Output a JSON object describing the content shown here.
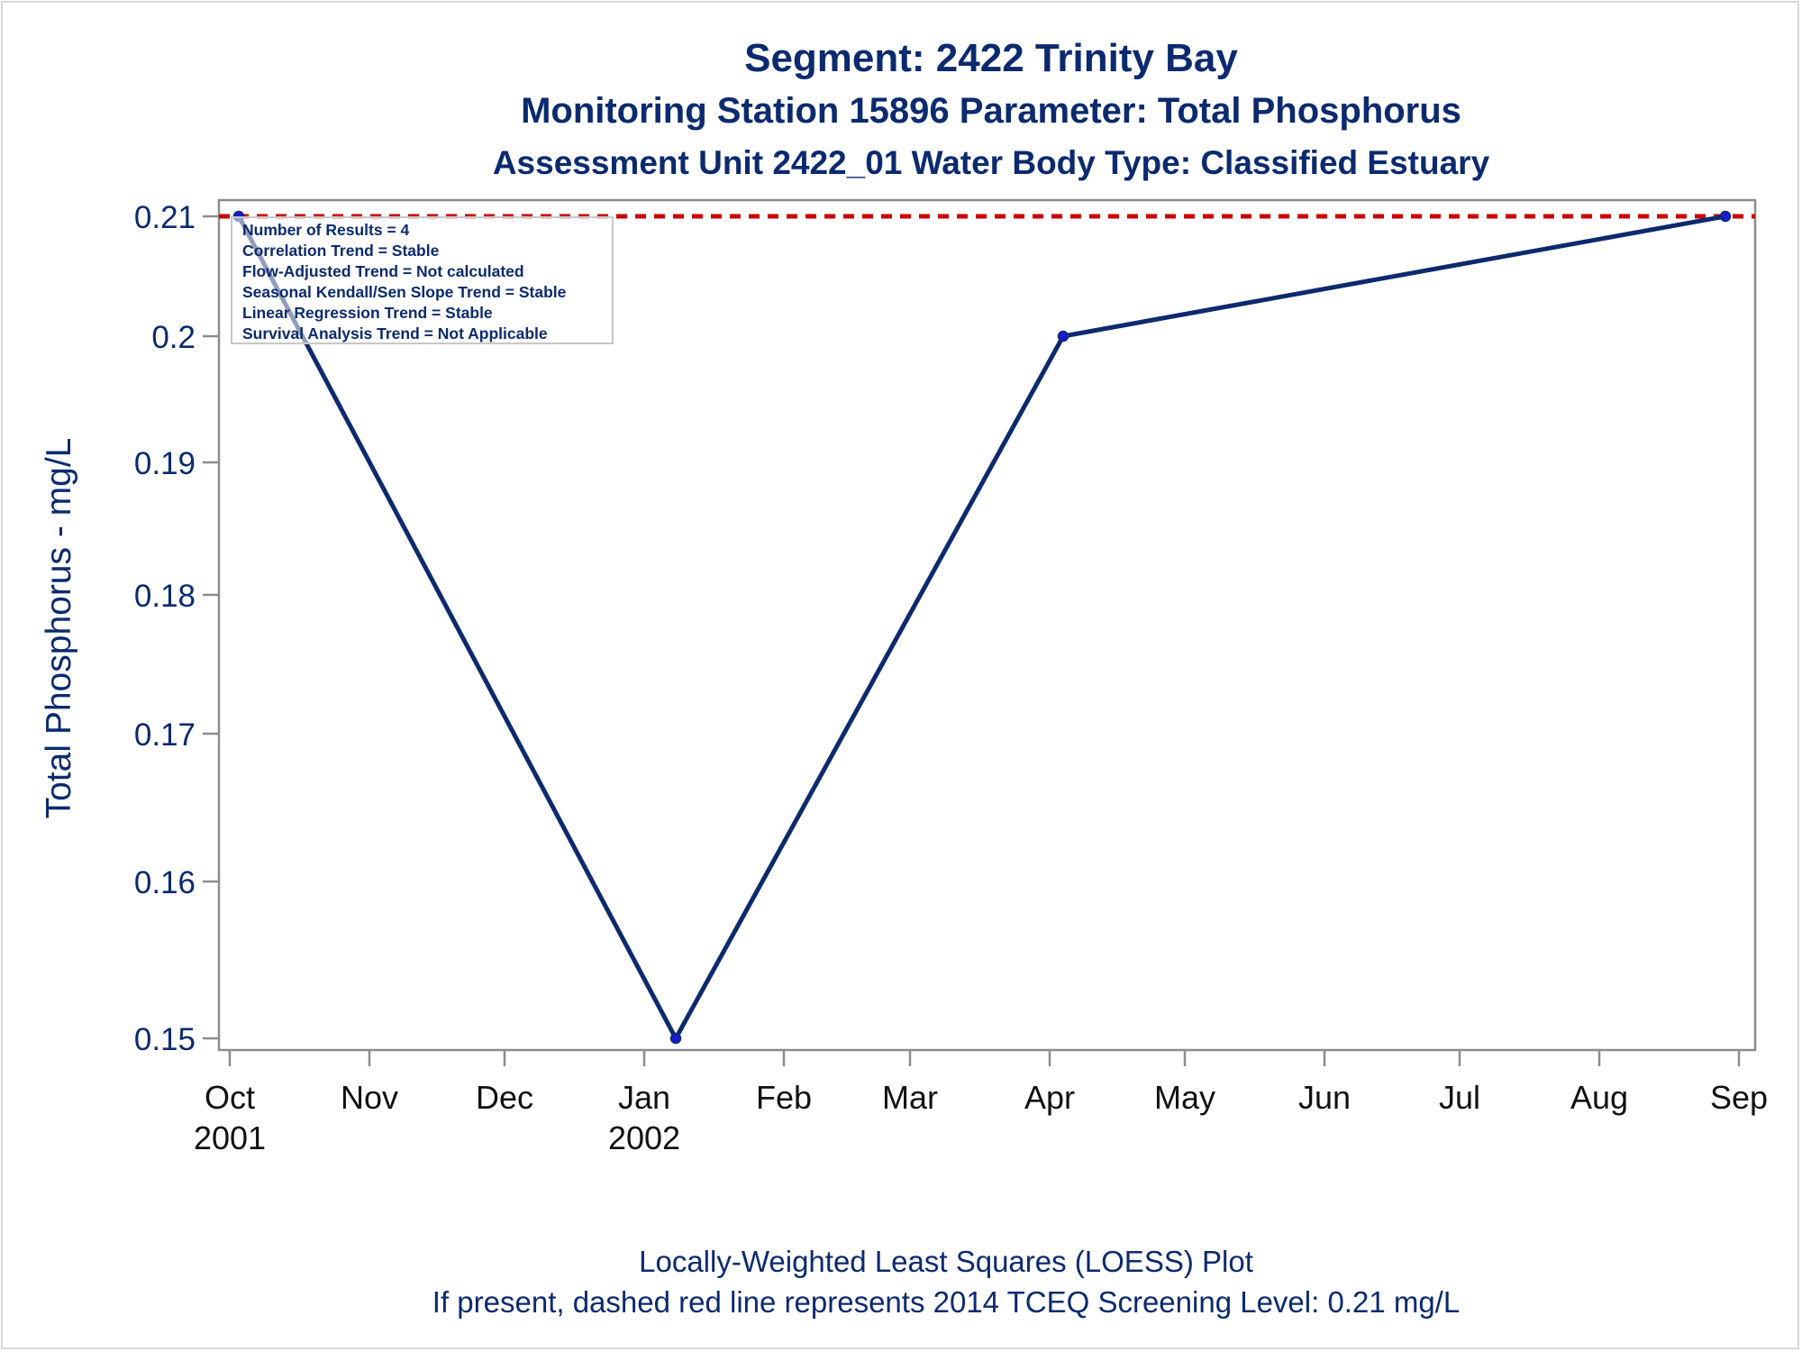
{
  "titles": {
    "line1": "Segment: 2422  Trinity Bay",
    "line2": "Monitoring Station 15896 Parameter: Total Phosphorus",
    "line3": "Assessment Unit 2422_01   Water Body Type: Classified Estuary"
  },
  "footnotes": {
    "line1": "Locally-Weighted Least Squares (LOESS) Plot",
    "line2": "If present, dashed red line represents 2014 TCEQ Screening Level: 0.21 mg/L"
  },
  "stats_box": [
    "Number of Results = 4",
    "Correlation Trend = Stable",
    "Flow-Adjusted Trend = Not calculated",
    "Seasonal Kendall/Sen Slope Trend = Stable",
    "Linear Regression Trend = Stable",
    "Survival Analysis Trend = Not Applicable"
  ],
  "colors": {
    "text": "#0b2a6f",
    "series": "#0d2a6e",
    "marker": "#1a1acc",
    "screening_line": "#cc0000",
    "axis": "#8c8c8c"
  },
  "chart_data": {
    "type": "line",
    "title": "Segment: 2422  Trinity Bay",
    "xlabel": "",
    "ylabel": "Total Phosphorus - mg/L",
    "ylim": [
      0.15,
      0.21
    ],
    "yticks": [
      0.15,
      0.16,
      0.17,
      0.18,
      0.19,
      0.2,
      0.21
    ],
    "ytick_labels": [
      "0.15",
      "0.16",
      "0.17",
      "0.18",
      "0.19",
      "0.2",
      "0.21"
    ],
    "xticks": [
      {
        "date": "2001-10-01",
        "label1": "Oct",
        "label2": "2001"
      },
      {
        "date": "2001-11-01",
        "label1": "Nov",
        "label2": ""
      },
      {
        "date": "2001-12-01",
        "label1": "Dec",
        "label2": ""
      },
      {
        "date": "2002-01-01",
        "label1": "Jan",
        "label2": "2002"
      },
      {
        "date": "2002-02-01",
        "label1": "Feb",
        "label2": ""
      },
      {
        "date": "2002-03-01",
        "label1": "Mar",
        "label2": ""
      },
      {
        "date": "2002-04-01",
        "label1": "Apr",
        "label2": ""
      },
      {
        "date": "2002-05-01",
        "label1": "May",
        "label2": ""
      },
      {
        "date": "2002-06-01",
        "label1": "Jun",
        "label2": ""
      },
      {
        "date": "2002-07-01",
        "label1": "Jul",
        "label2": ""
      },
      {
        "date": "2002-08-01",
        "label1": "Aug",
        "label2": ""
      },
      {
        "date": "2002-09-01",
        "label1": "Sep",
        "label2": ""
      }
    ],
    "series": [
      {
        "points": [
          {
            "x": "2001-10-03",
            "y": 0.21
          },
          {
            "x": "2002-01-08",
            "y": 0.15
          },
          {
            "x": "2002-04-04",
            "y": 0.2
          },
          {
            "x": "2002-08-29",
            "y": 0.21
          }
        ]
      }
    ],
    "reference_lines": [
      {
        "y": 0.21,
        "style": "dashed",
        "color": "#cc0000"
      }
    ],
    "grid": false
  }
}
